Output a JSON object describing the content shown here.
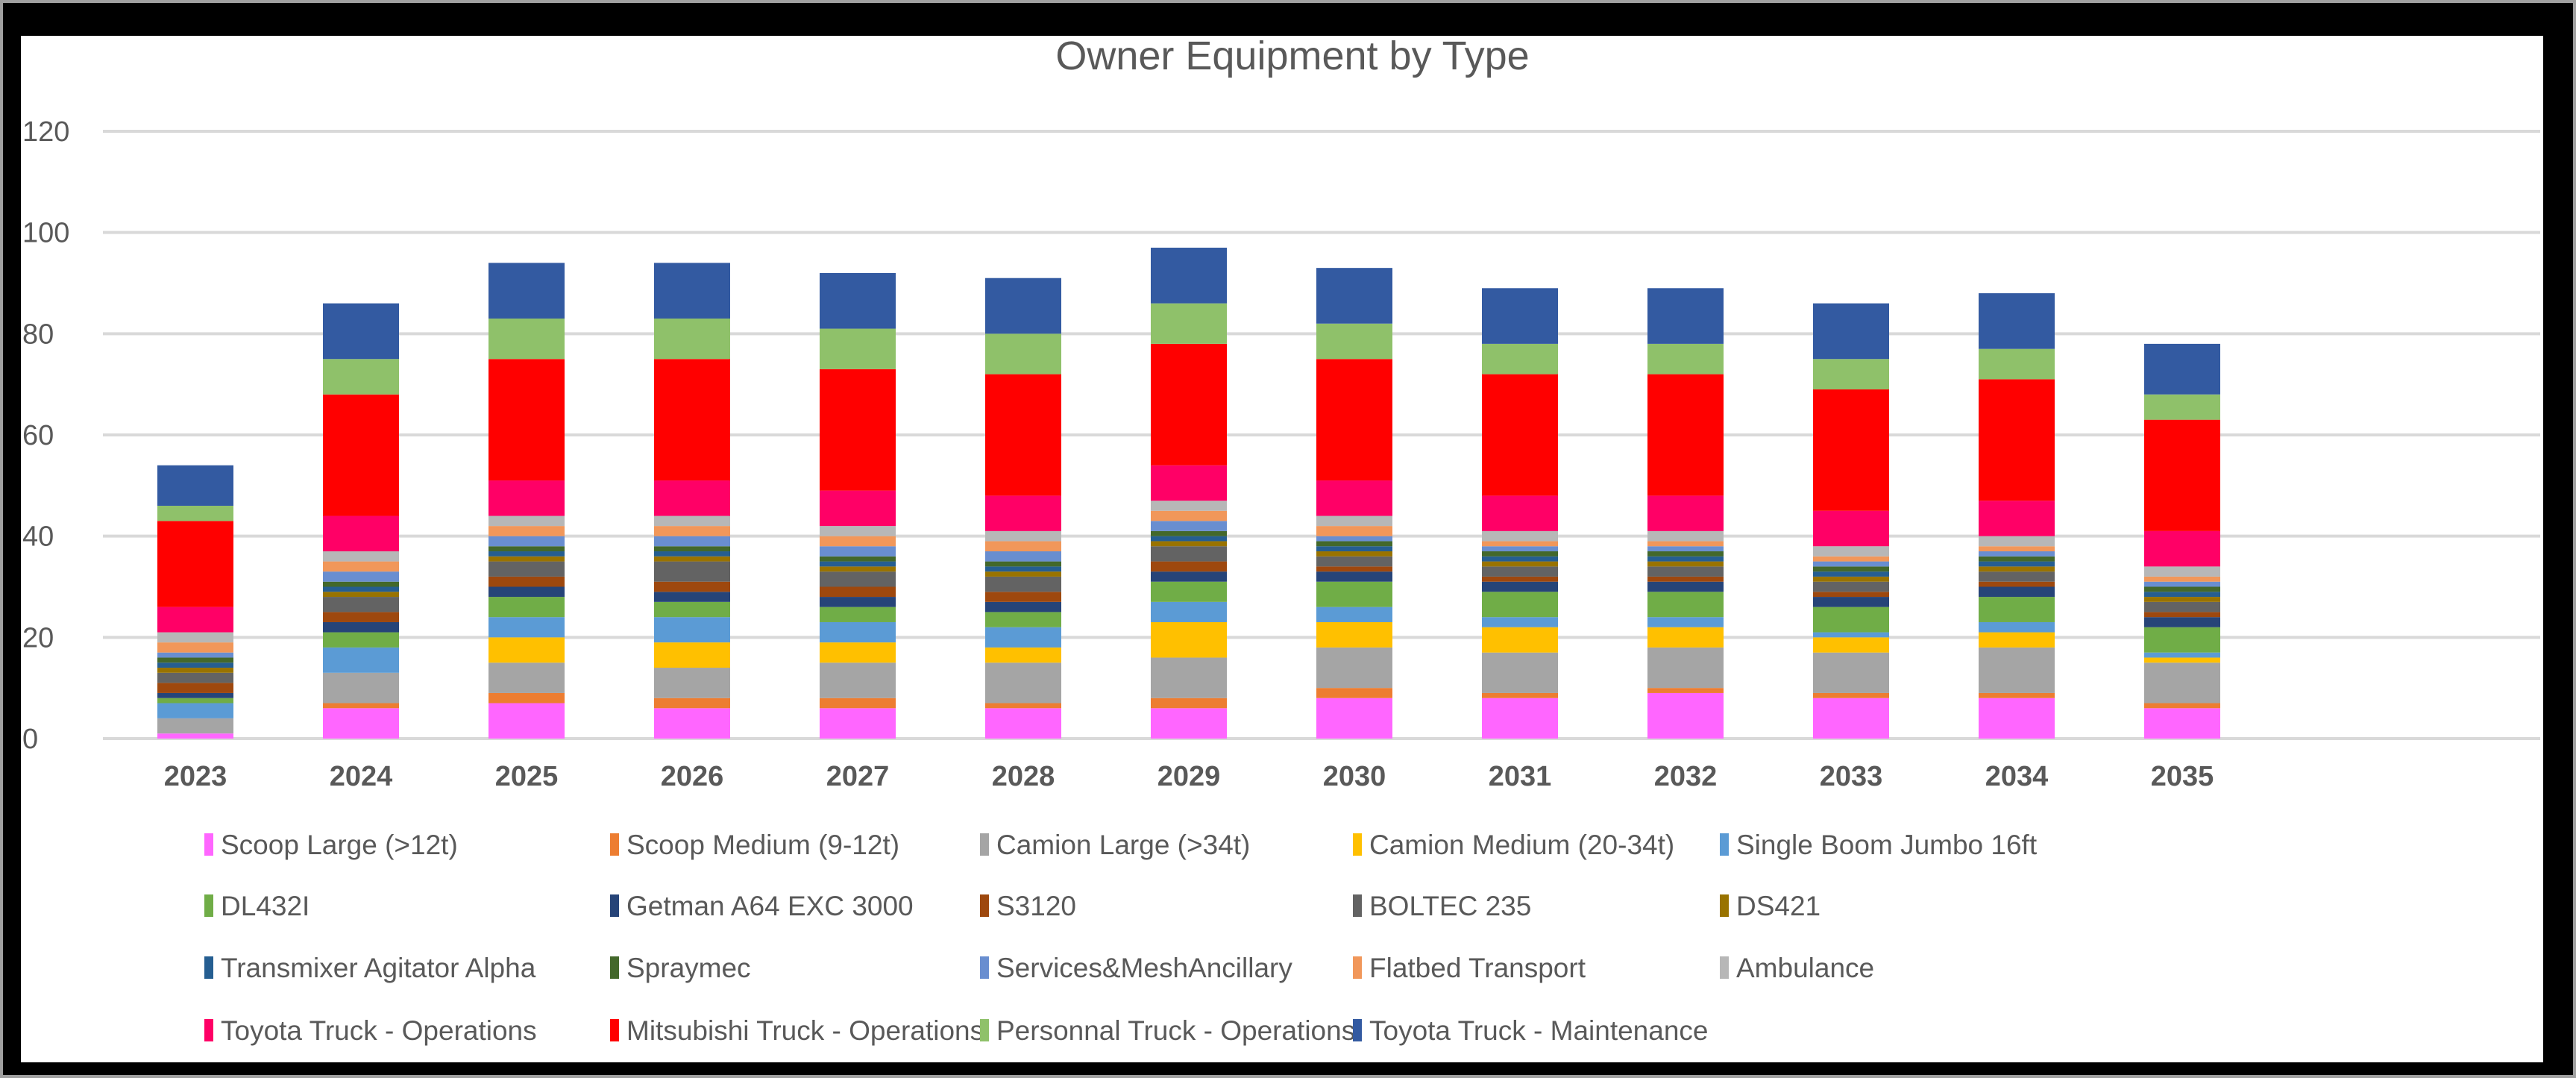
{
  "chart_data": {
    "type": "bar",
    "stacked": true,
    "title": "Owner Equipment by Type",
    "xlabel": "",
    "ylabel": "",
    "ylim": [
      0,
      120
    ],
    "yticks": [
      0,
      20,
      40,
      60,
      80,
      100,
      120
    ],
    "grid": true,
    "legend_position": "bottom",
    "categories": [
      "2023",
      "2024",
      "2025",
      "2026",
      "2027",
      "2028",
      "2029",
      "2030",
      "2031",
      "2032",
      "2033",
      "2034",
      "2035"
    ],
    "series": [
      {
        "name": "Scoop Large (>12t)",
        "color": "#FF66FF",
        "values": [
          1,
          6,
          7,
          6,
          6,
          6,
          6,
          8,
          8,
          9,
          8,
          8,
          6
        ]
      },
      {
        "name": "Scoop Medium (9-12t)",
        "color": "#ED7D31",
        "values": [
          0,
          1,
          2,
          2,
          2,
          1,
          2,
          2,
          1,
          1,
          1,
          1,
          1
        ]
      },
      {
        "name": "Camion Large (>34t)",
        "color": "#A5A5A5",
        "values": [
          3,
          6,
          6,
          6,
          7,
          8,
          8,
          8,
          8,
          8,
          8,
          9,
          8
        ]
      },
      {
        "name": "Camion Medium (20-34t)",
        "color": "#FFC000",
        "values": [
          0,
          0,
          5,
          5,
          4,
          3,
          7,
          5,
          5,
          4,
          3,
          3,
          1
        ]
      },
      {
        "name": "Single Boom Jumbo 16ft",
        "color": "#5B9BD5",
        "values": [
          3,
          5,
          4,
          5,
          4,
          4,
          4,
          3,
          2,
          2,
          1,
          2,
          1
        ]
      },
      {
        "name": "DL432I",
        "color": "#70AD47",
        "values": [
          1,
          3,
          4,
          3,
          3,
          3,
          4,
          5,
          5,
          5,
          5,
          5,
          5
        ]
      },
      {
        "name": "Getman A64 EXC 3000",
        "color": "#264478",
        "values": [
          1,
          2,
          2,
          2,
          2,
          2,
          2,
          2,
          2,
          2,
          2,
          2,
          2
        ]
      },
      {
        "name": "S3120",
        "color": "#9E480E",
        "values": [
          2,
          2,
          2,
          2,
          2,
          2,
          2,
          1,
          1,
          1,
          1,
          1,
          1
        ]
      },
      {
        "name": "BOLTEC 235",
        "color": "#636363",
        "values": [
          2,
          3,
          3,
          4,
          3,
          3,
          3,
          2,
          2,
          2,
          2,
          2,
          2
        ]
      },
      {
        "name": "DS421",
        "color": "#997300",
        "values": [
          1,
          1,
          1,
          1,
          1,
          1,
          1,
          1,
          1,
          1,
          1,
          1,
          1
        ]
      },
      {
        "name": "Transmixer Agitator Alpha",
        "color": "#255E91",
        "values": [
          1,
          1,
          1,
          1,
          1,
          1,
          1,
          1,
          1,
          1,
          1,
          1,
          1
        ]
      },
      {
        "name": "Spraymec",
        "color": "#43682B",
        "values": [
          1,
          1,
          1,
          1,
          1,
          1,
          1,
          1,
          1,
          1,
          1,
          1,
          1
        ]
      },
      {
        "name": "Services&MeshAncillary",
        "color": "#698ED0",
        "values": [
          1,
          2,
          2,
          2,
          2,
          2,
          2,
          1,
          1,
          1,
          1,
          1,
          1
        ]
      },
      {
        "name": "Flatbed Transport",
        "color": "#F1975A",
        "values": [
          2,
          2,
          2,
          2,
          2,
          2,
          2,
          2,
          1,
          1,
          1,
          1,
          1
        ]
      },
      {
        "name": "Ambulance",
        "color": "#B7B7B7",
        "values": [
          2,
          2,
          2,
          2,
          2,
          2,
          2,
          2,
          2,
          2,
          2,
          2,
          2
        ]
      },
      {
        "name": "Toyota Truck - Operations",
        "color": "#FF0066",
        "values": [
          5,
          7,
          7,
          7,
          7,
          7,
          7,
          7,
          7,
          7,
          7,
          7,
          7
        ]
      },
      {
        "name": "Mitsubishi Truck - Operations",
        "color": "#FF0000",
        "values": [
          17,
          24,
          24,
          24,
          24,
          24,
          24,
          24,
          24,
          24,
          24,
          24,
          22
        ]
      },
      {
        "name": "Personnal Truck - Operations",
        "color": "#8FC16A",
        "values": [
          3,
          7,
          8,
          8,
          8,
          8,
          8,
          7,
          6,
          6,
          6,
          6,
          5
        ]
      },
      {
        "name": "Toyota Truck - Maintenance",
        "color": "#335AA1",
        "values": [
          8,
          11,
          11,
          11,
          11,
          11,
          11,
          11,
          11,
          11,
          11,
          11,
          10
        ]
      }
    ]
  }
}
